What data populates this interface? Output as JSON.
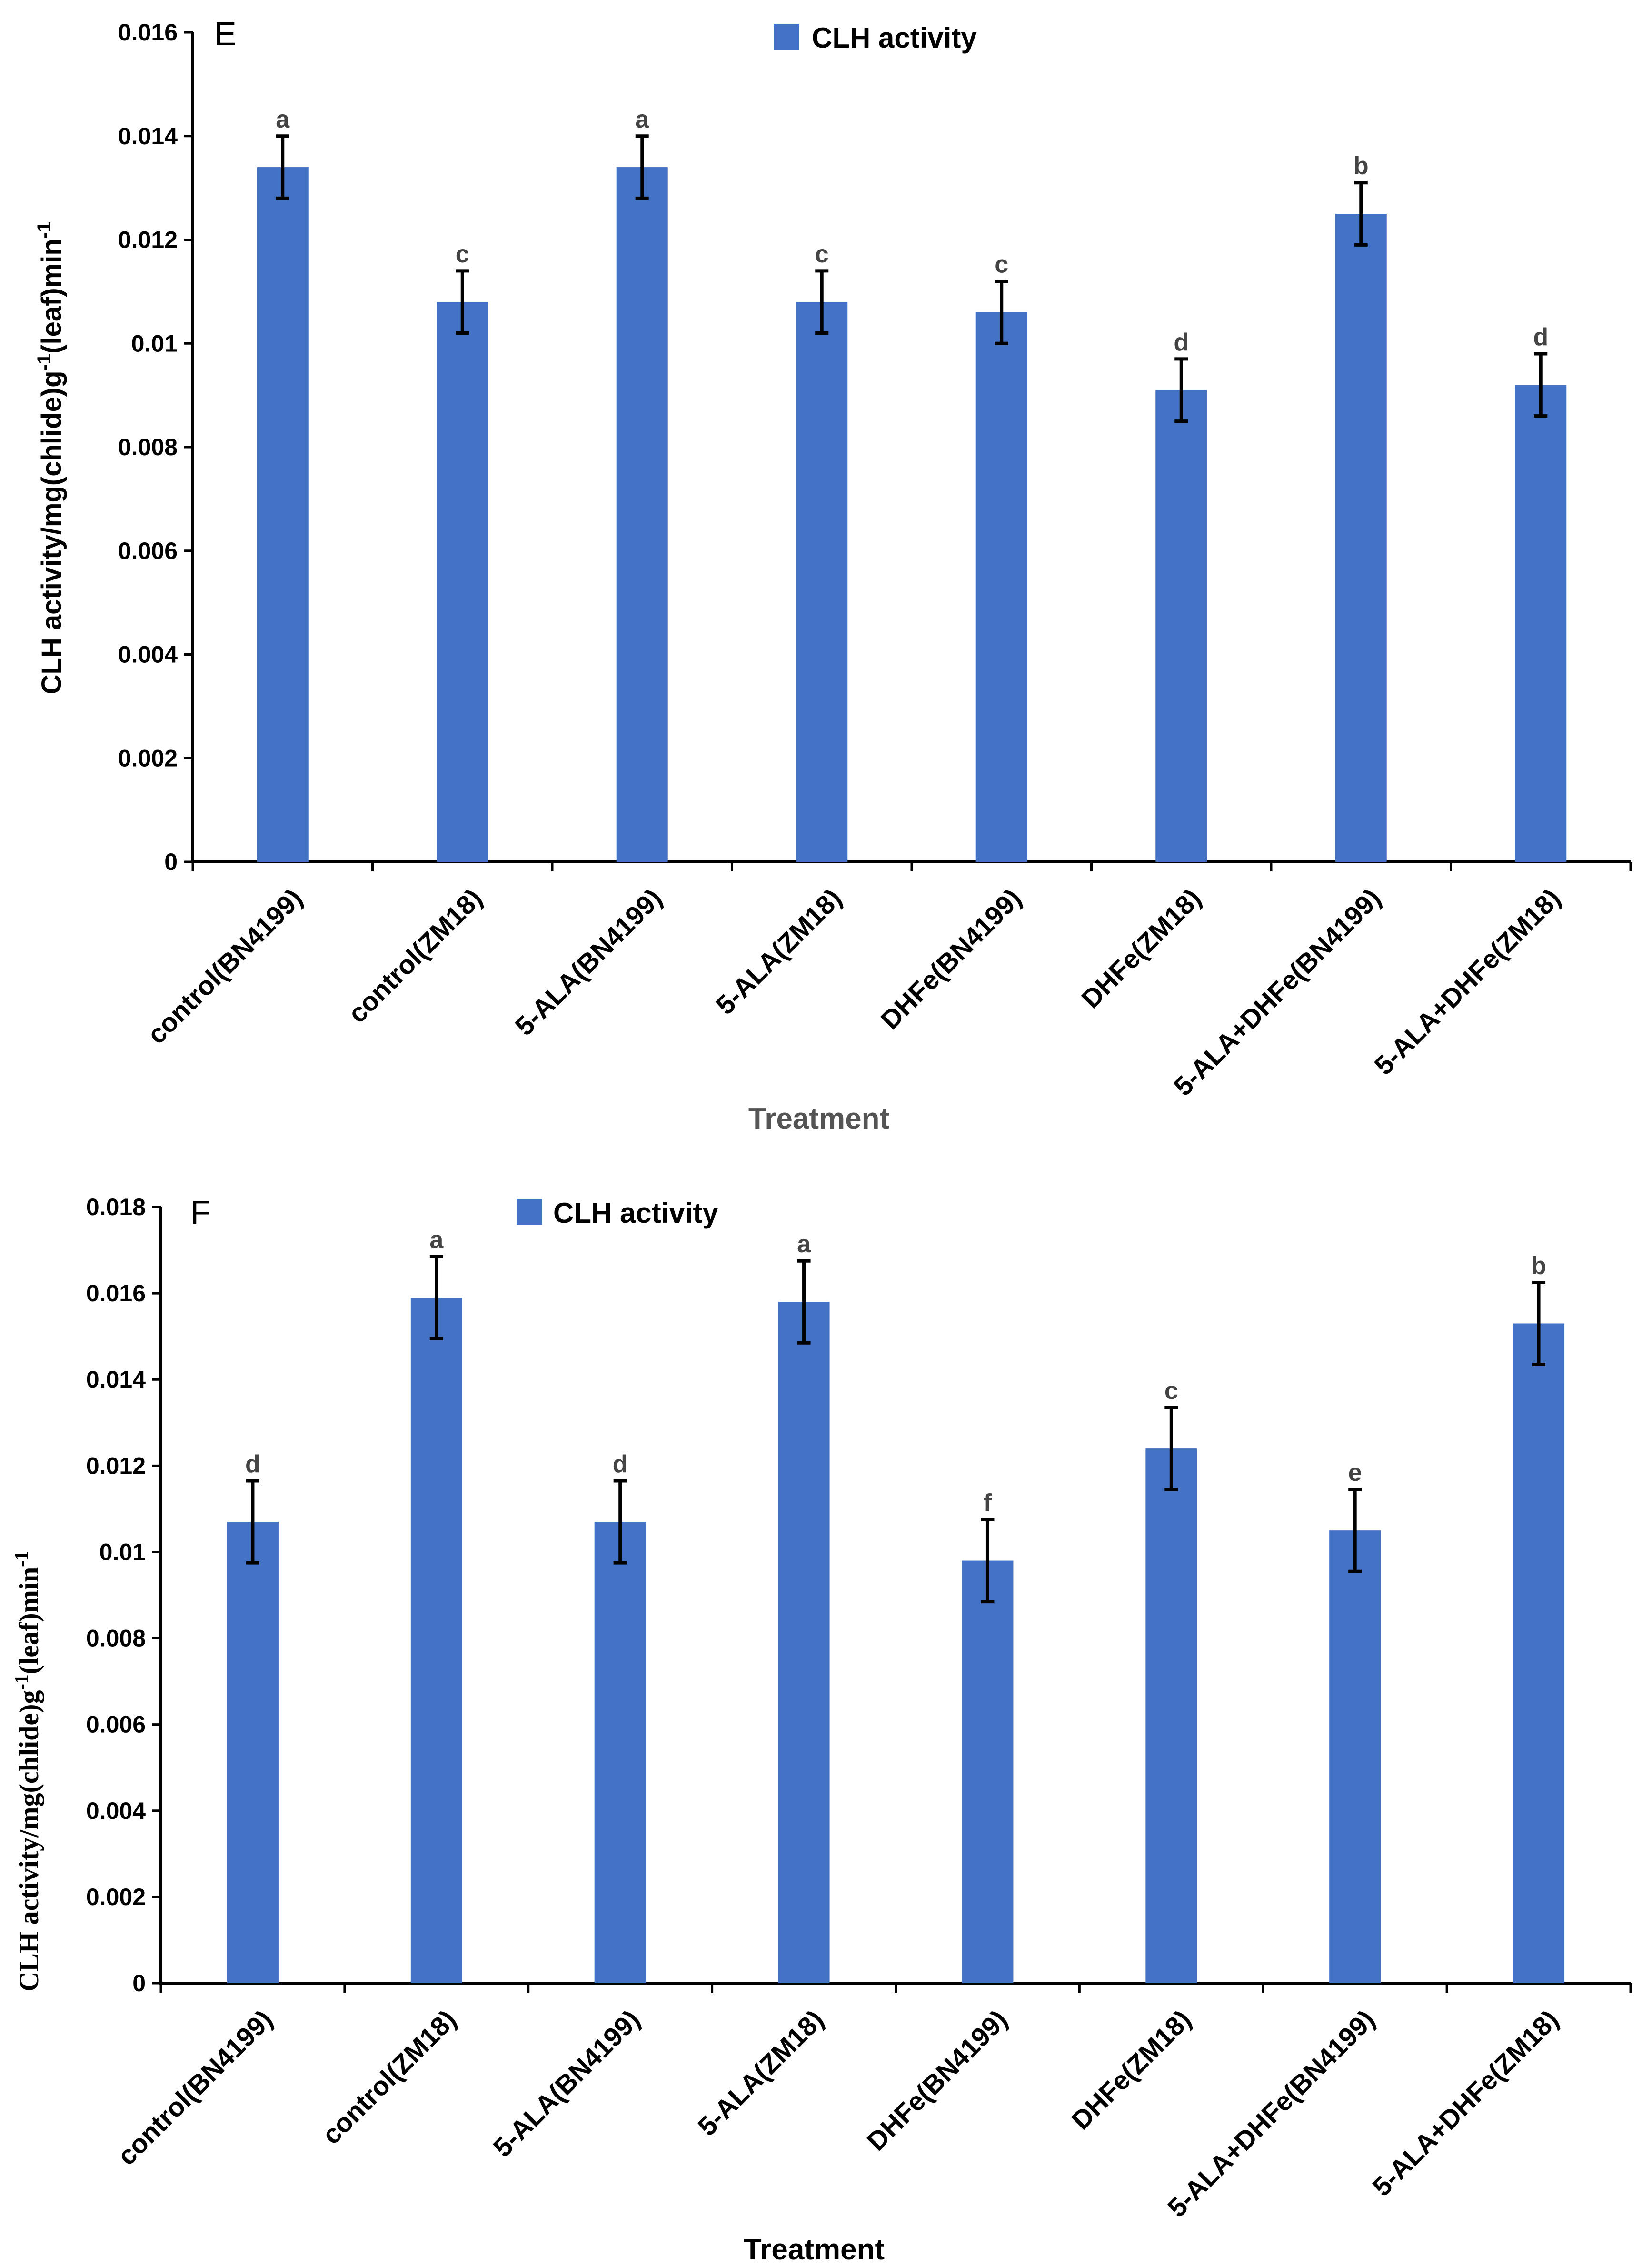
{
  "colors": {
    "bar": "#4472C4",
    "axis": "#000000",
    "error": "#000000"
  },
  "chart_data": [
    {
      "type": "bar",
      "panel": "E",
      "legend": "CLH activity",
      "xlabel": "Treatment",
      "ylabel": "CLH activity/mg(chlide)g-1(leaf)min-1",
      "ylabel_parts": {
        "main": "CLH activity/mg(chlide)g",
        "sup1": "-1",
        "mid": "(leaf)min",
        "sup2": "-1"
      },
      "ylim": [
        0,
        0.016
      ],
      "yticks": [
        0,
        0.002,
        0.004,
        0.006,
        0.008,
        0.01,
        0.012,
        0.014,
        0.016
      ],
      "ytick_labels": [
        "0",
        "0.002",
        "0.004",
        "0.006",
        "0.008",
        "0.01",
        "0.012",
        "0.014",
        "0.016"
      ],
      "categories": [
        "control(BN4199)",
        "control(ZM18)",
        "5-ALA(BN4199)",
        "5-ALA(ZM18)",
        "DHFe(BN4199)",
        "DHFe(ZM18)",
        "5-ALA+DHFe(BN4199)",
        "5-ALA+DHFe(ZM18)"
      ],
      "values": [
        0.0134,
        0.0108,
        0.0134,
        0.0108,
        0.0106,
        0.0091,
        0.0125,
        0.0092
      ],
      "errors": [
        0.0006,
        0.0006,
        0.0006,
        0.0006,
        0.0006,
        0.0006,
        0.0006,
        0.0006
      ],
      "significance": [
        "a",
        "c",
        "a",
        "c",
        "c",
        "d",
        "b",
        "d"
      ]
    },
    {
      "type": "bar",
      "panel": "F",
      "legend": "CLH activity",
      "xlabel": "Treatment",
      "ylabel": "CLH activity/mg(chlide)g-1(leaf)min-1",
      "ylabel_parts": {
        "main": "CLH activity/mg(chlide)g",
        "sup1": "-1",
        "mid": "(leaf)min",
        "sup2": "-1"
      },
      "ylim": [
        0,
        0.018
      ],
      "yticks": [
        0,
        0.002,
        0.004,
        0.006,
        0.008,
        0.01,
        0.012,
        0.014,
        0.016,
        0.018
      ],
      "ytick_labels": [
        "0",
        "0.002",
        "0.004",
        "0.006",
        "0.008",
        "0.01",
        "0.012",
        "0.014",
        "0.016",
        "0.018"
      ],
      "categories": [
        "control(BN4199)",
        "control(ZM18)",
        "5-ALA(BN4199)",
        "5-ALA(ZM18)",
        "DHFe(BN4199)",
        "DHFe(ZM18)",
        "5-ALA+DHFe(BN4199)",
        "5-ALA+DHFe(ZM18)"
      ],
      "values": [
        0.0107,
        0.0159,
        0.0107,
        0.0158,
        0.0098,
        0.0124,
        0.0105,
        0.0153
      ],
      "errors": [
        0.00095,
        0.00095,
        0.00095,
        0.00095,
        0.00095,
        0.00095,
        0.00095,
        0.00095
      ],
      "significance": [
        "d",
        "a",
        "d",
        "a",
        "f",
        "c",
        "e",
        "b"
      ]
    }
  ]
}
